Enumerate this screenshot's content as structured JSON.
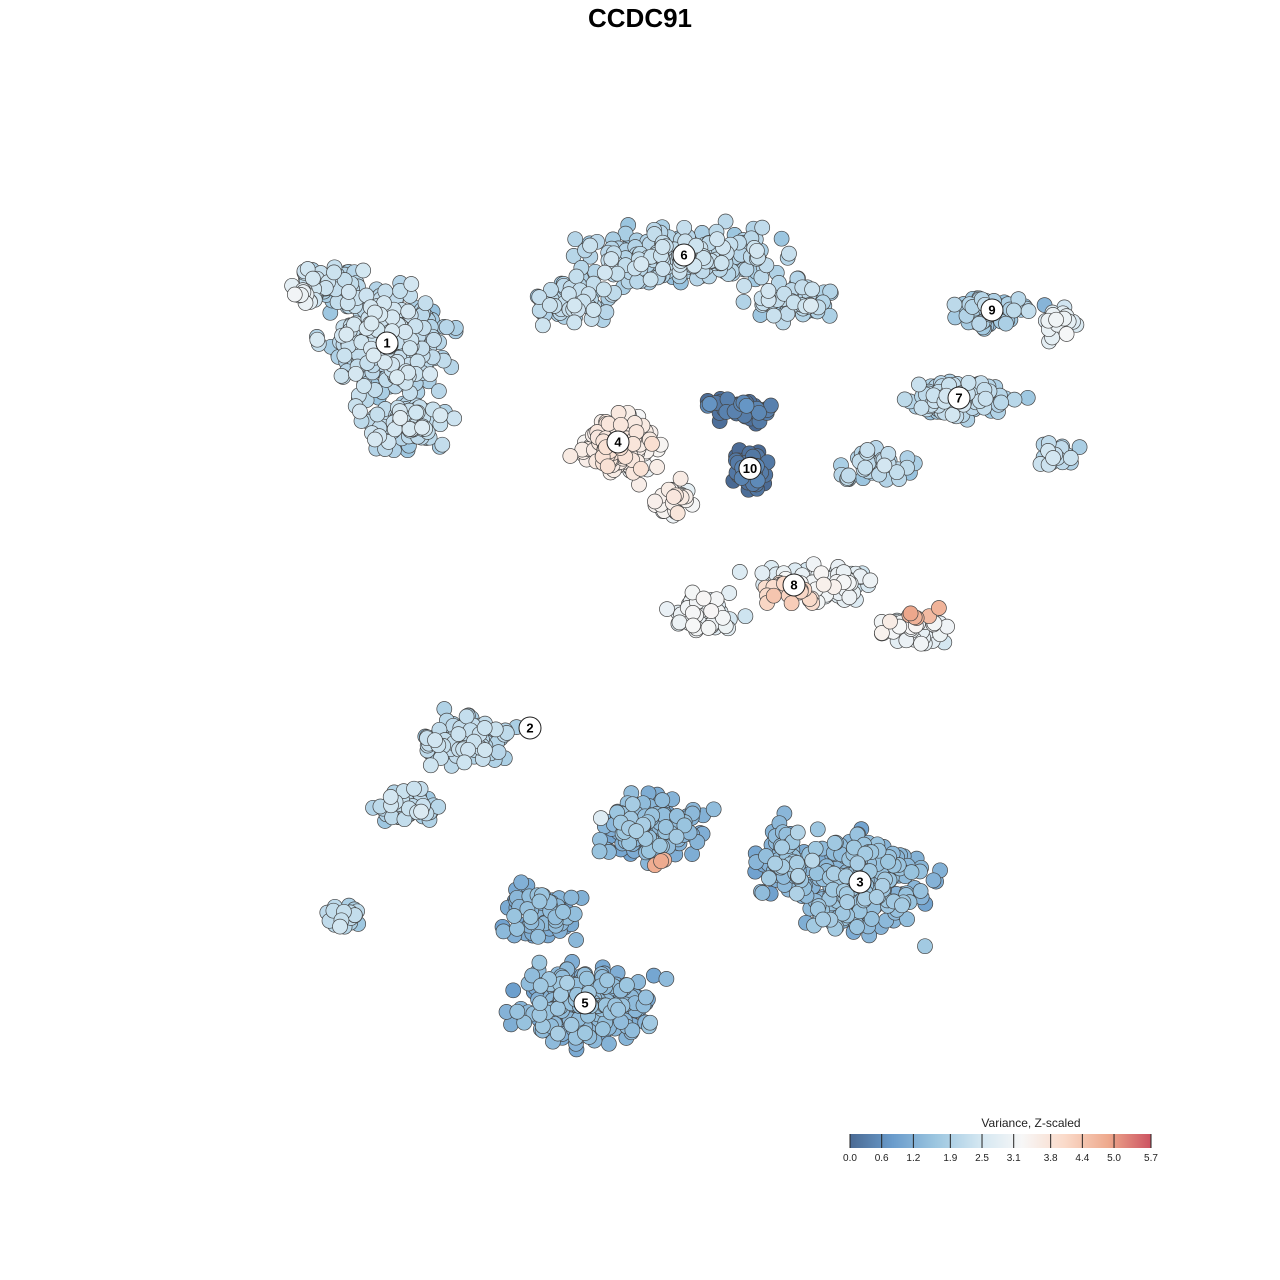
{
  "chart_data": {
    "type": "scatter",
    "title": "CCDC91",
    "xlabel": "",
    "ylabel": "",
    "grid": false,
    "axes_visible": false,
    "point_style": {
      "edge_color": "#444444"
    },
    "color_scale": {
      "title": "Variance, Z-scaled",
      "min": 0.0,
      "max": 5.7,
      "ticks": [
        0.0,
        0.6,
        1.2,
        1.9,
        2.5,
        3.1,
        3.8,
        4.4,
        5.0,
        5.7
      ],
      "tick_labels": [
        "0.0",
        "0.6",
        "1.2",
        "1.9",
        "2.5",
        "3.1",
        "3.8",
        "4.4",
        "5.0",
        "5.7"
      ],
      "colors": [
        "#4a6a94",
        "#6a9ccc",
        "#9cc6e0",
        "#d2e6f1",
        "#f7f7f7",
        "#fadac9",
        "#eea98d",
        "#cc5361"
      ],
      "legend_position": "bottom-right"
    },
    "clusters": [
      {
        "label": "1",
        "x": -11.5,
        "y": 13.5,
        "typical_value": 2.1
      },
      {
        "label": "2",
        "x": -5.0,
        "y": -4.0,
        "typical_value": 2.0
      },
      {
        "label": "3",
        "x": 10.0,
        "y": -11.0,
        "typical_value": 1.4
      },
      {
        "label": "4",
        "x": -1.0,
        "y": 9.0,
        "typical_value": 3.4
      },
      {
        "label": "5",
        "x": -2.5,
        "y": -16.5,
        "typical_value": 1.3
      },
      {
        "label": "6",
        "x": 2.0,
        "y": 17.5,
        "typical_value": 2.0
      },
      {
        "label": "7",
        "x": 14.5,
        "y": 11.0,
        "typical_value": 2.0
      },
      {
        "label": "8",
        "x": 7.0,
        "y": 2.5,
        "typical_value": 2.9
      },
      {
        "label": "9",
        "x": 16.0,
        "y": 15.0,
        "typical_value": 1.7
      },
      {
        "label": "10",
        "x": 5.0,
        "y": 7.8,
        "typical_value": 0.2
      }
    ],
    "xlim": [
      -25,
      25
    ],
    "ylim": [
      -25,
      25
    ]
  }
}
